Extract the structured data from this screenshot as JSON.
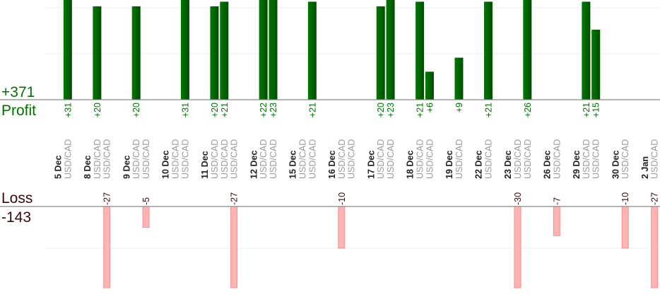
{
  "summary": {
    "profit_total": "+371",
    "profit_label": "Profit",
    "loss_label": "Loss",
    "loss_total": "-143"
  },
  "colors": {
    "profit": "#006400",
    "profit_text": "#007000",
    "loss_fill": "#ffb3b3",
    "loss_stroke": "#f09090",
    "loss_text": "#3a0a0a",
    "pair_text": "#999999",
    "date_text": "#222222"
  },
  "chart_data": {
    "type": "bar",
    "title": "",
    "groups": [
      {
        "date": "5 Dec",
        "trades": [
          {
            "pair": "USD/CAD",
            "value": 31
          }
        ]
      },
      {
        "date": "8 Dec",
        "trades": [
          {
            "pair": "USD/CAD",
            "value": 20
          },
          {
            "pair": "USD/CAD",
            "value": -27
          }
        ]
      },
      {
        "date": "9 Dec",
        "trades": [
          {
            "pair": "USD/CAD",
            "value": 20
          },
          {
            "pair": "USD/CAD",
            "value": -5
          }
        ]
      },
      {
        "date": "10 Dec",
        "trades": [
          {
            "pair": "USD/CAD",
            "value": 0
          },
          {
            "pair": "USD/CAD",
            "value": 31
          }
        ]
      },
      {
        "date": "11 Dec",
        "trades": [
          {
            "pair": "USD/CAD",
            "value": 20
          },
          {
            "pair": "USD/CAD",
            "value": 21
          },
          {
            "pair": "USD/CAD",
            "value": -27
          }
        ]
      },
      {
        "date": "12 Dec",
        "trades": [
          {
            "pair": "USD/CAD",
            "value": 22
          },
          {
            "pair": "USD/CAD",
            "value": 23
          }
        ]
      },
      {
        "date": "15 Dec",
        "trades": [
          {
            "pair": "USD/CAD",
            "value": 0
          },
          {
            "pair": "USD/CAD",
            "value": 21
          }
        ]
      },
      {
        "date": "16 Dec",
        "trades": [
          {
            "pair": "USD/CAD",
            "value": -10
          },
          {
            "pair": "USD/CAD",
            "value": 0
          }
        ]
      },
      {
        "date": "17 Dec",
        "trades": [
          {
            "pair": "USD/CAD",
            "value": 20
          },
          {
            "pair": "USD/CAD",
            "value": 23
          }
        ]
      },
      {
        "date": "18 Dec",
        "trades": [
          {
            "pair": "USD/CAD",
            "value": 21
          },
          {
            "pair": "USD/CAD",
            "value": 6
          }
        ]
      },
      {
        "date": "19 Dec",
        "trades": [
          {
            "pair": "USD/CAD",
            "value": 9
          }
        ]
      },
      {
        "date": "22 Dec",
        "trades": [
          {
            "pair": "USD/CAD",
            "value": 21
          }
        ]
      },
      {
        "date": "23 Dec",
        "trades": [
          {
            "pair": "USD/CAD",
            "value": -30
          },
          {
            "pair": "USD/CAD",
            "value": 26
          }
        ]
      },
      {
        "date": "26 Dec",
        "trades": [
          {
            "pair": "USD/CAD",
            "value": -7
          }
        ]
      },
      {
        "date": "29 Dec",
        "trades": [
          {
            "pair": "USD/CAD",
            "value": 21
          },
          {
            "pair": "USD/CAD",
            "value": 15
          }
        ]
      },
      {
        "date": "30 Dec",
        "trades": [
          {
            "pair": "USD/CAD",
            "value": -10
          }
        ]
      },
      {
        "date": "2 Jan",
        "trades": [
          {
            "pair": "USD/CAD",
            "value": -27
          }
        ]
      }
    ],
    "grid": true
  }
}
